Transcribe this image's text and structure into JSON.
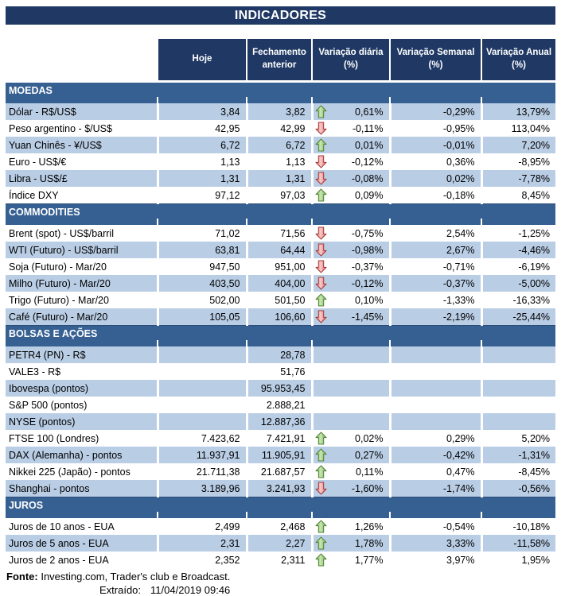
{
  "title": "INDICADORES",
  "columns": [
    "Hoje",
    "Fechamento anterior",
    "Variação diária (%)",
    "Variação Semanal (%)",
    "Variação Anual (%)"
  ],
  "colors": {
    "navy": "#1F3864",
    "section_blue": "#366092",
    "row_shade": "#B9CDE5",
    "arrow_up_stroke": "#538135",
    "arrow_up_fill": "#8FCE7A",
    "arrow_down_stroke": "#A33A38",
    "arrow_down_fill": "#EC8F8F"
  },
  "sections": [
    {
      "name": "MOEDAS",
      "rows": [
        {
          "label": "Dólar - R$/US$",
          "hoje": "3,84",
          "fechamento": "3,82",
          "arrow": "up",
          "diaria": "0,61%",
          "semanal": "-0,29%",
          "anual": "13,79%"
        },
        {
          "label": "Peso argentino - $/US$",
          "hoje": "42,95",
          "fechamento": "42,99",
          "arrow": "down",
          "diaria": "-0,11%",
          "semanal": "-0,95%",
          "anual": "113,04%"
        },
        {
          "label": "Yuan Chinês - ¥/US$",
          "hoje": "6,72",
          "fechamento": "6,72",
          "arrow": "up",
          "diaria": "0,01%",
          "semanal": "-0,01%",
          "anual": "7,20%"
        },
        {
          "label": "Euro - US$/€",
          "hoje": "1,13",
          "fechamento": "1,13",
          "arrow": "down",
          "diaria": "-0,12%",
          "semanal": "0,36%",
          "anual": "-8,95%"
        },
        {
          "label": "Libra - US$/£",
          "hoje": "1,31",
          "fechamento": "1,31",
          "arrow": "down",
          "diaria": "-0,08%",
          "semanal": "0,02%",
          "anual": "-7,78%"
        },
        {
          "label": "Índice DXY",
          "hoje": "97,12",
          "fechamento": "97,03",
          "arrow": "up",
          "diaria": "0,09%",
          "semanal": "-0,18%",
          "anual": "8,45%"
        }
      ]
    },
    {
      "name": "COMMODITIES",
      "rows": [
        {
          "label": "Brent (spot) - US$/barril",
          "hoje": "71,02",
          "fechamento": "71,56",
          "arrow": "down",
          "diaria": "-0,75%",
          "semanal": "2,54%",
          "anual": "-1,25%"
        },
        {
          "label": "WTI (Futuro) - US$/barril",
          "hoje": "63,81",
          "fechamento": "64,44",
          "arrow": "down",
          "diaria": "-0,98%",
          "semanal": "2,67%",
          "anual": "-4,46%"
        },
        {
          "label": "Soja (Futuro) - Mar/20",
          "hoje": "947,50",
          "fechamento": "951,00",
          "arrow": "down",
          "diaria": "-0,37%",
          "semanal": "-0,71%",
          "anual": "-6,19%"
        },
        {
          "label": "Milho (Futuro) - Mar/20",
          "hoje": "403,50",
          "fechamento": "404,00",
          "arrow": "down",
          "diaria": "-0,12%",
          "semanal": "-0,37%",
          "anual": "-5,00%"
        },
        {
          "label": "Trigo (Futuro) - Mar/20",
          "hoje": "502,00",
          "fechamento": "501,50",
          "arrow": "up",
          "diaria": "0,10%",
          "semanal": "-1,33%",
          "anual": "-16,33%"
        },
        {
          "label": "Café (Futuro) - Mar/20",
          "hoje": "105,05",
          "fechamento": "106,60",
          "arrow": "down",
          "diaria": "-1,45%",
          "semanal": "-2,19%",
          "anual": "-25,44%"
        }
      ]
    },
    {
      "name": "BOLSAS E AÇÕES",
      "rows": [
        {
          "label": "PETR4 (PN) - R$",
          "hoje": "",
          "fechamento": "28,78",
          "arrow": null,
          "diaria": "",
          "semanal": "",
          "anual": ""
        },
        {
          "label": "VALE3 - R$",
          "hoje": "",
          "fechamento": "51,76",
          "arrow": null,
          "diaria": "",
          "semanal": "",
          "anual": ""
        },
        {
          "label": "Ibovespa (pontos)",
          "hoje": "",
          "fechamento": "95.953,45",
          "arrow": null,
          "diaria": "",
          "semanal": "",
          "anual": ""
        },
        {
          "label": "S&P 500 (pontos)",
          "hoje": "",
          "fechamento": "2.888,21",
          "arrow": null,
          "diaria": "",
          "semanal": "",
          "anual": ""
        },
        {
          "label": "NYSE (pontos)",
          "hoje": "",
          "fechamento": "12.887,36",
          "arrow": null,
          "diaria": "",
          "semanal": "",
          "anual": ""
        },
        {
          "label": "FTSE 100 (Londres)",
          "hoje": "7.423,62",
          "fechamento": "7.421,91",
          "arrow": "up",
          "diaria": "0,02%",
          "semanal": "0,29%",
          "anual": "5,20%"
        },
        {
          "label": "DAX (Alemanha) - pontos",
          "hoje": "11.937,91",
          "fechamento": "11.905,91",
          "arrow": "up",
          "diaria": "0,27%",
          "semanal": "-0,42%",
          "anual": "-1,31%"
        },
        {
          "label": "Nikkei 225 (Japão) - pontos",
          "hoje": "21.711,38",
          "fechamento": "21.687,57",
          "arrow": "up",
          "diaria": "0,11%",
          "semanal": "0,47%",
          "anual": "-8,45%"
        },
        {
          "label": "Shanghai - pontos",
          "hoje": "3.189,96",
          "fechamento": "3.241,93",
          "arrow": "down",
          "diaria": "-1,60%",
          "semanal": "-1,74%",
          "anual": "-0,56%"
        }
      ]
    },
    {
      "name": "JUROS",
      "rows": [
        {
          "label": "Juros de 10 anos - EUA",
          "hoje": "2,499",
          "fechamento": "2,468",
          "arrow": "up",
          "diaria": "1,26%",
          "semanal": "-0,54%",
          "anual": "-10,18%"
        },
        {
          "label": "Juros de 5 anos - EUA",
          "hoje": "2,31",
          "fechamento": "2,27",
          "arrow": "up",
          "diaria": "1,78%",
          "semanal": "3,33%",
          "anual": "-11,58%"
        },
        {
          "label": "Juros de 2 anos - EUA",
          "hoje": "2,352",
          "fechamento": "2,311",
          "arrow": "up",
          "diaria": "1,77%",
          "semanal": "3,97%",
          "anual": "1,95%"
        }
      ]
    }
  ],
  "footer": {
    "source_label": "Fonte:",
    "source_text": " Investing.com, Trader's club e Broadcast.",
    "extracted_label": "Extraído:",
    "extracted_value": "11/04/2019 09:46"
  }
}
